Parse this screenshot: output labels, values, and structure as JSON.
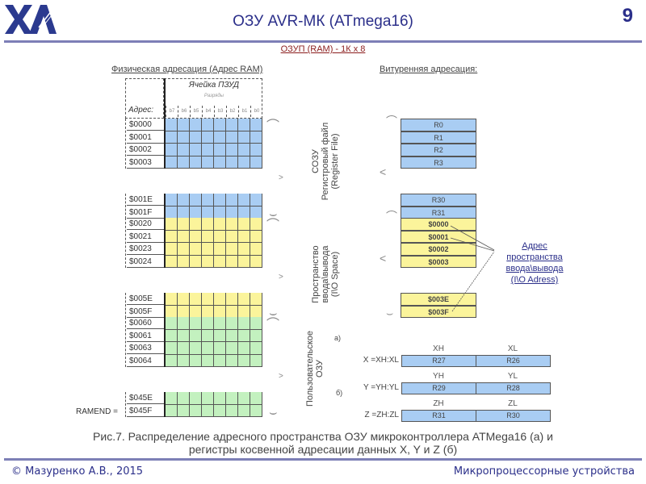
{
  "header": {
    "logo": "ХАИ",
    "title": "ОЗУ AVR-МК (ATmega16)",
    "page_number": "9",
    "subtitle": "ОЗУП (RAM) - 1К x 8"
  },
  "physical": {
    "heading": "Физическая адресация (Адрес RAM)",
    "cell_label": "Ячейка ПЗУД",
    "bits_label": "Разряды",
    "address_label": "Адрес:",
    "bits": [
      "b7",
      "b6",
      "b5",
      "b4",
      "b3",
      "b2",
      "b1",
      "b0"
    ],
    "blocks": [
      {
        "color": "#a9cdf3",
        "addresses": [
          "$0000",
          "$0001",
          "$0002",
          "$0003"
        ]
      },
      {
        "color": "#a9cdf3",
        "addresses": [
          "$001E",
          "$001F"
        ]
      },
      {
        "color": "#fbf49b",
        "addresses": [
          "$0020",
          "$0021",
          "$0023",
          "$0024"
        ]
      },
      {
        "color": "#fbf49b",
        "addresses": [
          "$005E",
          "$005F"
        ]
      },
      {
        "color": "#c3f1bf",
        "addresses": [
          "$0060",
          "$0061",
          "$0063",
          "$0064"
        ]
      },
      {
        "color": "#c3f1bf",
        "addresses": [
          "$045E",
          "$045F"
        ]
      }
    ],
    "ramend_label": "RAMEND ="
  },
  "internal": {
    "heading": "Витуренняя адресация:",
    "register_file": {
      "label_lines": [
        "СОЗУ",
        "Регистровый файл",
        "(Register File)"
      ],
      "top": [
        "R0",
        "R1",
        "R2",
        "R3"
      ],
      "bottom": [
        "R30",
        "R31"
      ]
    },
    "io_space": {
      "label_lines": [
        "Пространство",
        "ввода\\вывода",
        "(I\\O Space)"
      ],
      "top": [
        "$0000",
        "$0001",
        "$0002",
        "$0003"
      ],
      "bottom": [
        "$003E",
        "$003F"
      ]
    },
    "io_note_lines": [
      "Адрес",
      "пространства",
      "ввода\\вывода",
      "(I\\O Adress)"
    ],
    "user_ram_lines": [
      "Пользовательское",
      "ОЗУ"
    ]
  },
  "indirect": {
    "label_a": "а)",
    "label_b": "б)",
    "rows": [
      {
        "name": "X =XH:XL",
        "high": "XH",
        "low": "XL",
        "high_reg": "R27",
        "low_reg": "R26"
      },
      {
        "name": "Y =YH:YL",
        "high": "YH",
        "low": "YL",
        "high_reg": "R29",
        "low_reg": "R28"
      },
      {
        "name": "Z =ZH:ZL",
        "high": "ZH",
        "low": "ZL",
        "high_reg": "R31",
        "low_reg": "R30"
      }
    ]
  },
  "caption": {
    "line1": "Рис.7. Распределение адресного пространства ОЗУ микроконтроллера ATMega16 (а) и",
    "line2": "регистры косвенной адресации данных X, Y и Z (б)"
  },
  "footer": {
    "left": "© Мазуренко А.В., 2015",
    "right": "Микропроцессорные устройства"
  },
  "colors": {
    "blue": "#a9cdf3",
    "yellow": "#fbf49b",
    "green": "#c3f1bf",
    "accent": "#2b2f8a"
  }
}
